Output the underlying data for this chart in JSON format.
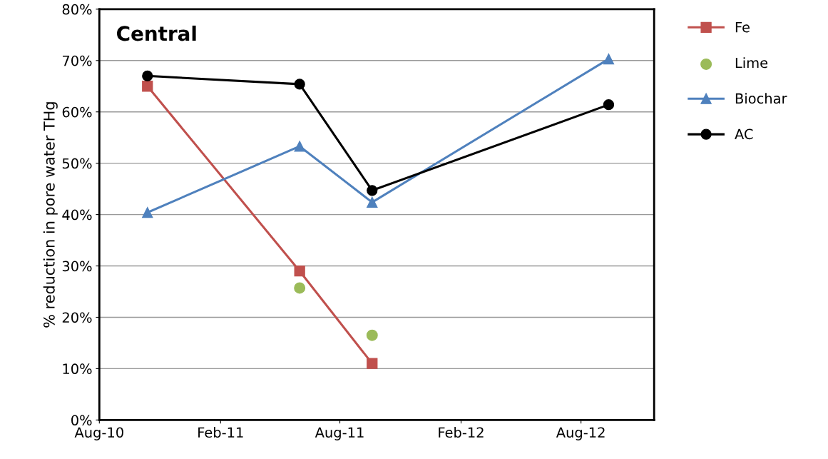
{
  "chart_data": {
    "type": "line",
    "title": "Central",
    "ylabel": "% reduction in pore water THg",
    "xlim": [
      "2010-08-01",
      "2012-11-20"
    ],
    "xticks": [
      {
        "value": "2010-08-01",
        "label": "Aug-10"
      },
      {
        "value": "2011-02-01",
        "label": "Feb-11"
      },
      {
        "value": "2011-08-01",
        "label": "Aug-11"
      },
      {
        "value": "2012-02-01",
        "label": "Feb-12"
      },
      {
        "value": "2012-08-01",
        "label": "Aug-12"
      }
    ],
    "ylim": [
      0,
      80
    ],
    "yticks": [
      {
        "value": 0,
        "label": "0%"
      },
      {
        "value": 10,
        "label": "10%"
      },
      {
        "value": 20,
        "label": "20%"
      },
      {
        "value": 30,
        "label": "30%"
      },
      {
        "value": 40,
        "label": "40%"
      },
      {
        "value": 50,
        "label": "50%"
      },
      {
        "value": 60,
        "label": "60%"
      },
      {
        "value": 70,
        "label": "70%"
      },
      {
        "value": 80,
        "label": "80%"
      }
    ],
    "grid": "y",
    "legend": "right",
    "series": [
      {
        "name": "Fe",
        "color": "#c0504d",
        "marker": "square",
        "x": [
          "2010-10-13",
          "2011-06-01",
          "2011-09-19"
        ],
        "values": [
          65,
          29,
          11
        ]
      },
      {
        "name": "Lime",
        "color": "#9bbb59",
        "type": "scatter",
        "marker": "circle",
        "x": [
          "2011-06-01",
          "2011-09-19"
        ],
        "values": [
          25.7,
          16.5
        ]
      },
      {
        "name": "Biochar",
        "color": "#4f81bd",
        "marker": "triangle",
        "x": [
          "2010-10-13",
          "2011-06-01",
          "2011-09-19",
          "2012-09-12"
        ],
        "values": [
          40.4,
          53.3,
          42.4,
          70.3
        ]
      },
      {
        "name": "AC",
        "color": "#000000",
        "marker": "circle",
        "x": [
          "2010-10-13",
          "2011-06-01",
          "2011-09-19",
          "2012-09-12"
        ],
        "values": [
          67,
          65.4,
          44.7,
          61.4
        ]
      }
    ]
  }
}
